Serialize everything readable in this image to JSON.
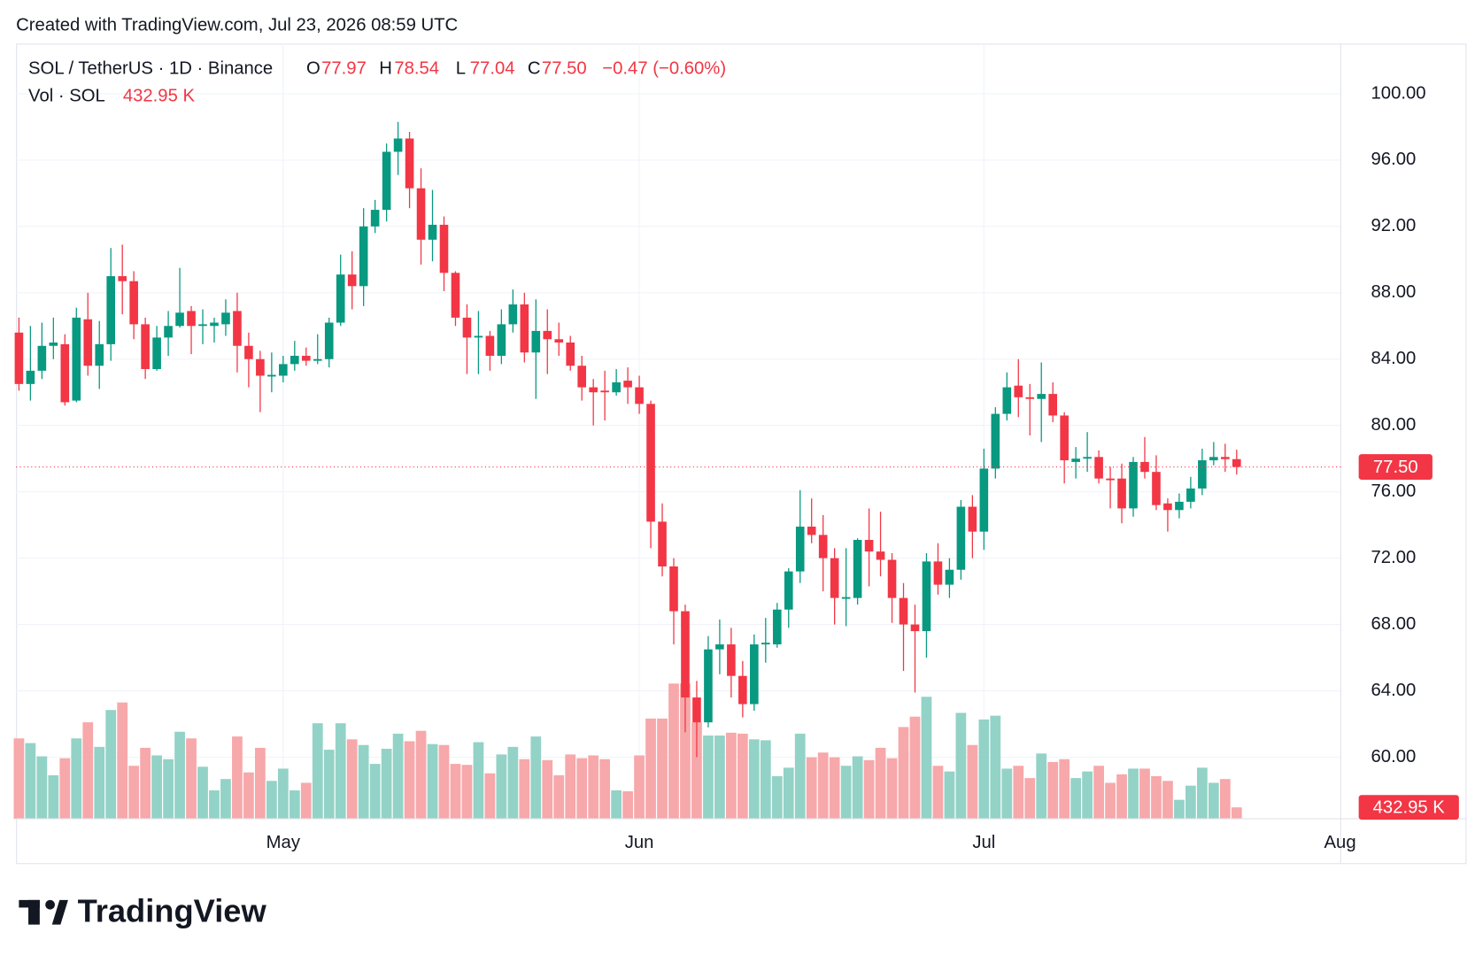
{
  "header": "Created with TradingView.com, Jul 23, 2026 08:59 UTC",
  "logo": "TradingView",
  "chart_data": {
    "type": "candlestick",
    "legend": {
      "symbol": "SOL / TetherUS · 1D · Binance",
      "open_label": "O",
      "open": "77.97",
      "high_label": "H",
      "high": "78.54",
      "low_label": "L",
      "low": "77.04",
      "close_label": "C",
      "close": "77.50",
      "change": "−0.47 (−0.60%)",
      "volume_title": "Vol · SOL",
      "volume": "432.95 K"
    },
    "up_color": "#089981",
    "down_color": "#f23645",
    "volume_up_color": "#93d2c7",
    "volume_down_color": "#f7a8aa",
    "open": [
      85.6,
      82.5,
      83.3,
      84.8,
      84.9,
      81.5,
      86.4,
      83.6,
      84.9,
      89.0,
      88.7,
      86.1,
      83.4,
      85.3,
      86.0,
      86.9,
      86.0,
      86.0,
      86.1,
      86.9,
      84.8,
      84.0,
      82.95,
      83.0,
      83.7,
      84.2,
      83.9,
      84.0,
      86.2,
      89.1,
      88.4,
      92.0,
      93.0,
      96.5,
      97.3,
      94.3,
      91.2,
      92.1,
      89.2,
      86.5,
      85.3,
      85.4,
      84.2,
      86.1,
      87.3,
      84.4,
      85.7,
      85.2,
      85.0,
      83.6,
      82.3,
      82.1,
      82.0,
      82.7,
      82.3,
      81.3,
      74.2,
      71.5,
      68.8,
      63.6,
      62.1,
      66.5,
      66.8,
      64.9,
      63.2,
      66.8,
      66.8,
      68.9,
      71.2,
      73.9,
      73.4,
      72.0,
      69.55,
      69.6,
      73.1,
      72.4,
      71.9,
      69.6,
      68.0,
      67.6,
      71.8,
      70.4,
      71.3,
      75.1,
      73.6,
      77.4,
      80.7,
      82.4,
      81.7,
      81.6,
      81.9,
      80.6,
      77.8,
      78.0,
      78.1,
      76.8,
      76.8,
      75.0,
      77.8,
      77.2,
      75.3,
      74.9,
      75.4,
      76.2,
      77.9,
      78.1,
      77.97
    ],
    "high": [
      86.5,
      86.0,
      86.2,
      86.5,
      85.5,
      87.1,
      88.0,
      86.3,
      90.7,
      90.9,
      89.3,
      86.5,
      86.0,
      86.9,
      89.5,
      87.2,
      87.0,
      86.5,
      87.6,
      88.0,
      85.6,
      84.5,
      84.4,
      84.2,
      85.1,
      84.7,
      85.5,
      86.5,
      90.3,
      90.5,
      93.1,
      93.6,
      97.0,
      98.3,
      97.7,
      95.5,
      94.2,
      92.6,
      89.3,
      87.3,
      86.9,
      85.7,
      87.0,
      88.2,
      88.0,
      87.6,
      87.0,
      86.2,
      85.4,
      84.2,
      82.8,
      83.3,
      83.4,
      83.5,
      83.0,
      81.5,
      75.3,
      72.0,
      69.2,
      64.6,
      67.3,
      68.3,
      67.8,
      65.8,
      67.4,
      68.4,
      69.3,
      71.4,
      76.1,
      75.6,
      74.6,
      72.6,
      72.6,
      73.2,
      75.0,
      74.8,
      72.3,
      70.5,
      69.2,
      72.3,
      72.9,
      72.0,
      75.5,
      75.8,
      78.6,
      81.1,
      83.2,
      84.0,
      82.5,
      83.8,
      82.6,
      80.8,
      78.7,
      79.6,
      78.5,
      77.5,
      77.7,
      78.1,
      79.3,
      78.2,
      75.6,
      75.9,
      76.9,
      78.6,
      79.0,
      78.9,
      78.54
    ],
    "low": [
      82.1,
      81.5,
      82.8,
      84.0,
      81.2,
      81.4,
      83.0,
      82.2,
      83.9,
      86.7,
      85.2,
      82.8,
      83.3,
      84.2,
      85.9,
      84.3,
      84.9,
      85.0,
      85.4,
      83.2,
      82.3,
      80.8,
      82.0,
      82.6,
      83.3,
      83.6,
      83.7,
      83.5,
      86.0,
      87.0,
      87.2,
      91.6,
      92.3,
      95.1,
      93.1,
      89.7,
      89.9,
      88.1,
      86.0,
      83.1,
      83.1,
      83.3,
      83.7,
      85.6,
      83.8,
      81.6,
      83.1,
      84.2,
      83.3,
      81.5,
      80.0,
      80.3,
      81.8,
      81.3,
      80.7,
      72.6,
      70.9,
      66.8,
      61.5,
      60.0,
      61.8,
      65.0,
      63.6,
      62.4,
      62.8,
      65.7,
      66.6,
      67.8,
      70.5,
      72.9,
      70.0,
      68.0,
      67.9,
      69.2,
      70.3,
      70.9,
      68.1,
      65.2,
      63.9,
      66.0,
      69.8,
      69.6,
      70.7,
      72.0,
      72.5,
      76.8,
      80.3,
      80.5,
      79.4,
      79.0,
      80.2,
      76.5,
      76.8,
      77.2,
      76.5,
      75.0,
      74.1,
      74.5,
      76.8,
      74.9,
      73.6,
      74.4,
      75.0,
      75.8,
      77.6,
      77.2,
      77.04
    ],
    "close": [
      82.5,
      83.3,
      84.8,
      85.0,
      81.4,
      86.5,
      83.6,
      84.9,
      89.0,
      88.7,
      86.1,
      83.4,
      85.3,
      86.0,
      86.8,
      86.0,
      86.1,
      86.2,
      86.8,
      84.8,
      84.0,
      83.0,
      83.05,
      83.7,
      84.2,
      83.9,
      84.0,
      86.2,
      89.1,
      88.4,
      92.0,
      93.0,
      96.5,
      97.3,
      94.3,
      91.2,
      92.1,
      89.2,
      86.5,
      85.3,
      85.4,
      84.2,
      86.1,
      87.3,
      84.4,
      85.7,
      85.2,
      85.0,
      83.6,
      82.3,
      82.0,
      82.0,
      82.6,
      82.3,
      81.3,
      74.2,
      71.5,
      68.8,
      63.6,
      62.1,
      66.5,
      66.8,
      64.9,
      63.2,
      66.8,
      66.9,
      68.9,
      71.2,
      73.9,
      73.4,
      72.0,
      69.6,
      69.65,
      73.1,
      72.4,
      71.9,
      69.6,
      68.0,
      67.6,
      71.8,
      70.4,
      71.3,
      75.1,
      73.6,
      77.4,
      80.7,
      82.3,
      81.7,
      81.6,
      81.9,
      80.6,
      77.9,
      78.0,
      78.1,
      76.8,
      76.7,
      75.0,
      77.8,
      77.2,
      75.2,
      74.9,
      75.4,
      76.2,
      77.9,
      78.1,
      77.97,
      77.5
    ],
    "volume": [
      3060,
      2880,
      2376,
      1656,
      2304,
      3060,
      3672,
      2736,
      4140,
      4428,
      2016,
      2700,
      2412,
      2268,
      3312,
      3060,
      1980,
      1080,
      1512,
      3132,
      1764,
      2700,
      1440,
      1908,
      1080,
      1368,
      3636,
      2628,
      3636,
      3024,
      2808,
      2088,
      2664,
      3240,
      2952,
      3348,
      2844,
      2808,
      2088,
      2052,
      2916,
      1728,
      2448,
      2736,
      2268,
      3132,
      2232,
      1656,
      2448,
      2304,
      2412,
      2268,
      1080,
      1044,
      2412,
      3816,
      3816,
      5148,
      5148,
      3672,
      3168,
      3168,
      3276,
      3240,
      3024,
      2988,
      1620,
      1944,
      3240,
      2340,
      2520,
      2340,
      2016,
      2376,
      2232,
      2700,
      2304,
      3492,
      3888,
      4644,
      2016,
      1800,
      4032,
      2808,
      3780,
      3924,
      1908,
      2016,
      1548,
      2484,
      2160,
      2268,
      1548,
      1800,
      2016,
      1368,
      1692,
      1908,
      1908,
      1620,
      1440,
      720,
      1260,
      1944,
      1368,
      1512,
      432.95
    ],
    "xlim": [
      -0.25,
      115.06
    ],
    "xticks": [
      {
        "value": 23,
        "label": "May"
      },
      {
        "value": 54,
        "label": "Jun"
      },
      {
        "value": 84,
        "label": "Jul"
      },
      {
        "value": 115,
        "label": "Aug"
      }
    ],
    "ylim": [
      56.29,
      103.02
    ],
    "yticks": [
      {
        "value": 60,
        "label": "60.00"
      },
      {
        "value": 64,
        "label": "64.00"
      },
      {
        "value": 68,
        "label": "68.00"
      },
      {
        "value": 72,
        "label": "72.00"
      },
      {
        "value": 76,
        "label": "76.00"
      },
      {
        "value": 80,
        "label": "80.00"
      },
      {
        "value": 84,
        "label": "84.00"
      },
      {
        "value": 88,
        "label": "88.00"
      },
      {
        "value": 92,
        "label": "92.00"
      },
      {
        "value": 96,
        "label": "96.00"
      },
      {
        "value": 100,
        "label": "100.00"
      }
    ],
    "grid": true
  }
}
